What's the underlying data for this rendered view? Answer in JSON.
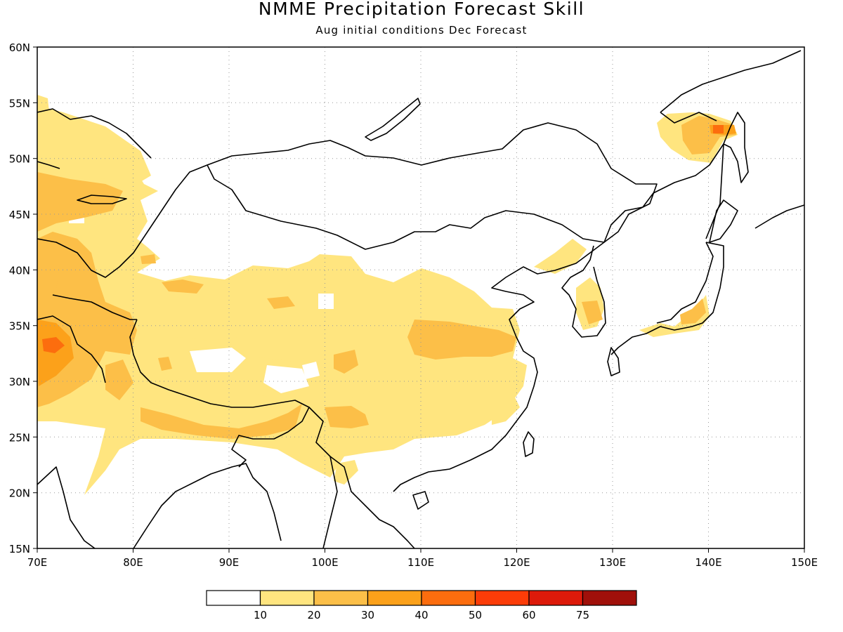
{
  "title": "NMME Precipitation Forecast Skill",
  "subtitle": "Aug initial conditions  Dec Forecast",
  "map": {
    "lon_range": [
      70,
      150
    ],
    "lat_range": [
      15,
      60
    ],
    "lon_ticks": [
      "70E",
      "80E",
      "90E",
      "100E",
      "110E",
      "120E",
      "130E",
      "140E",
      "150E"
    ],
    "lat_ticks": [
      "15N",
      "20N",
      "25N",
      "30N",
      "35N",
      "40N",
      "45N",
      "50N",
      "55N",
      "60N"
    ],
    "grid": "dotted",
    "shading_colors": {
      "10-20": "#ffe57f",
      "20-30": "#fcbf48",
      "30-40": "#fca11a",
      "40-50": "#fc6d0e"
    },
    "coastline_color": "#000000"
  },
  "colorbar": {
    "labels": [
      "10",
      "20",
      "30",
      "40",
      "50",
      "60",
      "75"
    ],
    "colors": [
      "#ffffff",
      "#ffe57f",
      "#fcbf48",
      "#fca11a",
      "#fc6d0e",
      "#fc3c08",
      "#dd1a0a",
      "#a0100a"
    ]
  }
}
